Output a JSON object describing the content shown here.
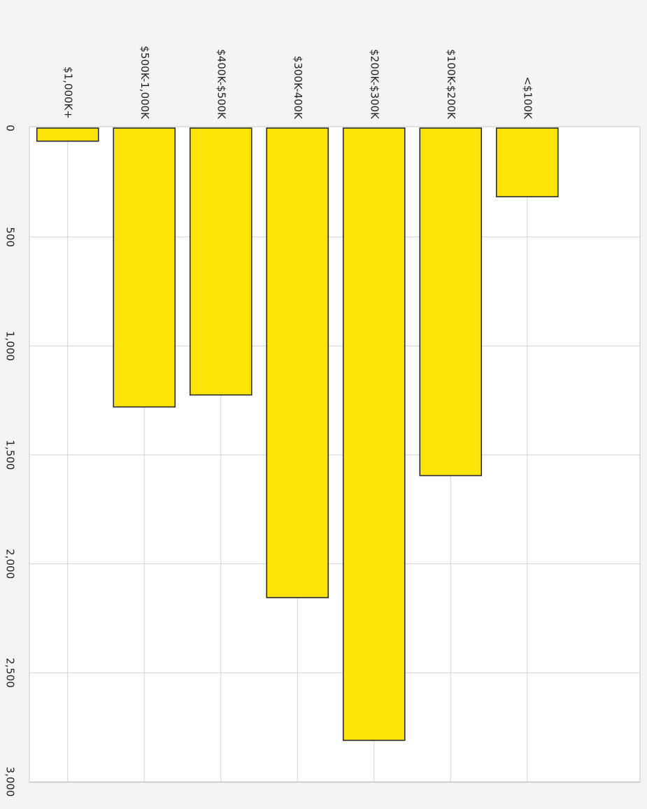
{
  "chart_data": {
    "type": "bar",
    "orientation": "horizontal-rotated",
    "categories": [
      "$1,000K+",
      "$500K-1,000K",
      "$400K-$500K",
      "$300K-400K",
      "$200K-$300K",
      "$100K-$200K",
      "<$100K"
    ],
    "values": [
      60,
      1280,
      1225,
      2155,
      2810,
      1595,
      315
    ],
    "title": "",
    "xlabel": "",
    "ylabel": "",
    "value_ticks": [
      "0",
      "500",
      "1,000",
      "1,500",
      "2,000",
      "2,500",
      "3,000"
    ],
    "ylim": [
      0,
      3000
    ],
    "grid": true,
    "legend": "none",
    "colors": {
      "bar_fill": "#ffe40a",
      "bar_stroke": "#2a2a2a",
      "plot_background": "#ffffff",
      "page_background": "#f4f4f4",
      "grid": "#d2d2d2",
      "text": "#222222"
    }
  }
}
